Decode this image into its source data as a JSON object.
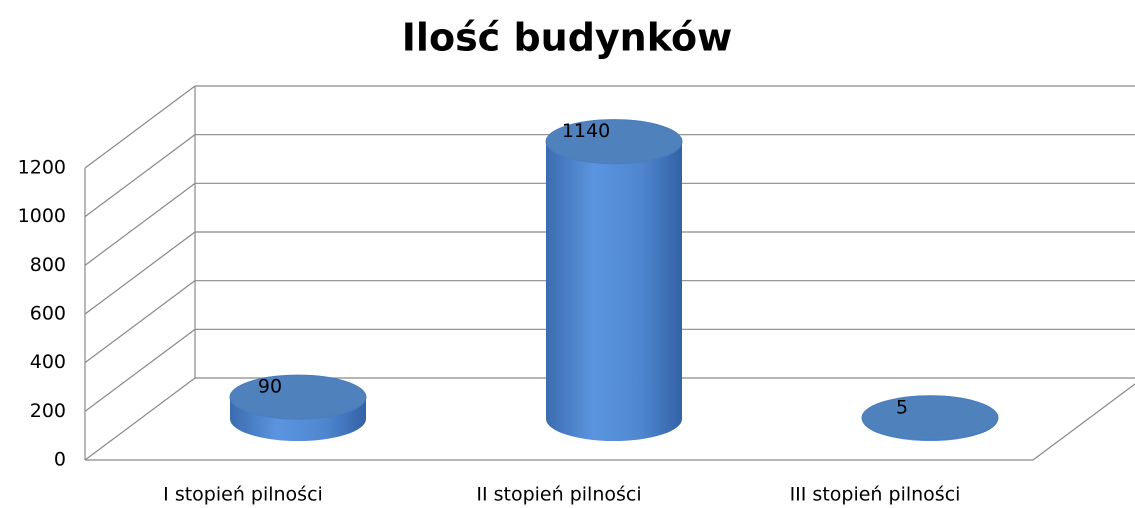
{
  "chart_data": {
    "type": "cylinder",
    "title": "Ilość budynków",
    "categories": [
      "I stopień pilności",
      "II stopień pilności",
      "III stopień pilności"
    ],
    "values": [
      90,
      1140,
      5
    ],
    "color": "#4f81bd",
    "ylim": [
      0,
      1200
    ],
    "yticks": [
      0,
      200,
      400,
      600,
      800,
      1000,
      1200
    ],
    "grid": true
  }
}
